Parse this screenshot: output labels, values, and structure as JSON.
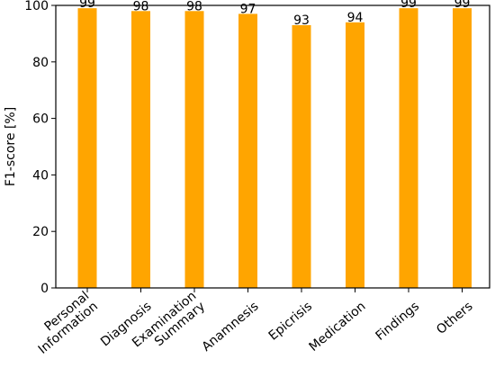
{
  "chart_data": {
    "type": "bar",
    "categories": [
      "Personal\nInformation",
      "Diagnosis",
      "Examination\nSummary",
      "Anamnesis",
      "Epicrisis",
      "Medication",
      "Findings",
      "Others"
    ],
    "values": [
      99,
      98,
      98,
      97,
      93,
      94,
      99,
      99
    ],
    "data_labels": [
      "99",
      "98",
      "98",
      "97",
      "93",
      "94",
      "99",
      "99"
    ],
    "ylabel": "F1-score [%]",
    "xlabel": "",
    "ylim": [
      0,
      100
    ],
    "yticks": [
      "0",
      "20",
      "40",
      "60",
      "80",
      "100"
    ],
    "grid": false,
    "bar_color": "#FFA500",
    "axis_color": "#000000"
  }
}
